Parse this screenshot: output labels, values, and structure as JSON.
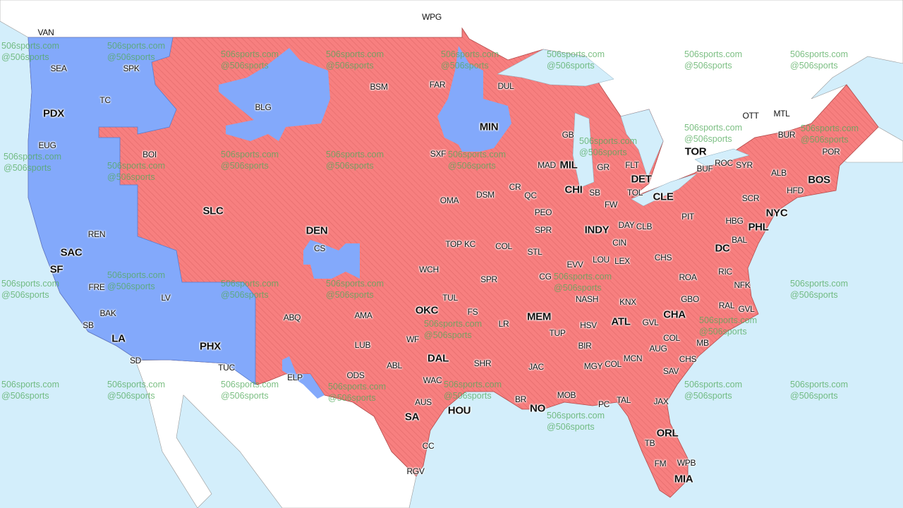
{
  "colors": {
    "water": "#d3eefb",
    "land": "#ffffff",
    "red_team": "#f77f7f",
    "blue_team": "#83a9fb",
    "border": "#b34a4a"
  },
  "watermark": {
    "line1": "506sports.com",
    "line2": "@506sports"
  },
  "labels": [
    {
      "text": "VAN",
      "major": false
    },
    {
      "text": "WPG",
      "major": false
    },
    {
      "text": "SEA",
      "major": false
    },
    {
      "text": "SPK",
      "major": false
    },
    {
      "text": "TC",
      "major": false
    },
    {
      "text": "PDX",
      "major": true
    },
    {
      "text": "EUG",
      "major": false
    },
    {
      "text": "BOI",
      "major": false
    },
    {
      "text": "BLG",
      "major": false
    },
    {
      "text": "BSM",
      "major": false
    },
    {
      "text": "FAR",
      "major": false
    },
    {
      "text": "DUL",
      "major": false
    },
    {
      "text": "MIN",
      "major": true
    },
    {
      "text": "GB",
      "major": false
    },
    {
      "text": "SXF",
      "major": false
    },
    {
      "text": "MAD",
      "major": false
    },
    {
      "text": "MIL",
      "major": true
    },
    {
      "text": "GR",
      "major": false
    },
    {
      "text": "FLT",
      "major": false
    },
    {
      "text": "DET",
      "major": true
    },
    {
      "text": "TOR",
      "major": true
    },
    {
      "text": "BUF",
      "major": false
    },
    {
      "text": "ROC",
      "major": false
    },
    {
      "text": "SYR",
      "major": false
    },
    {
      "text": "ALB",
      "major": false
    },
    {
      "text": "BUR",
      "major": false
    },
    {
      "text": "POR",
      "major": false
    },
    {
      "text": "BOS",
      "major": true
    },
    {
      "text": "HFD",
      "major": false
    },
    {
      "text": "NYC",
      "major": true
    },
    {
      "text": "SCR",
      "major": false
    },
    {
      "text": "PHL",
      "major": true
    },
    {
      "text": "HBG",
      "major": false
    },
    {
      "text": "PIT",
      "major": false
    },
    {
      "text": "BAL",
      "major": false
    },
    {
      "text": "DC",
      "major": true
    },
    {
      "text": "CLE",
      "major": true
    },
    {
      "text": "TOL",
      "major": false
    },
    {
      "text": "CHI",
      "major": true
    },
    {
      "text": "SB",
      "major": false
    },
    {
      "text": "FW",
      "major": false
    },
    {
      "text": "DAY",
      "major": false
    },
    {
      "text": "CLB",
      "major": false
    },
    {
      "text": "INDY",
      "major": true
    },
    {
      "text": "CIN",
      "major": false
    },
    {
      "text": "LEX",
      "major": false
    },
    {
      "text": "LOU",
      "major": false
    },
    {
      "text": "CHS",
      "major": false
    },
    {
      "text": "ROA",
      "major": false
    },
    {
      "text": "RIC",
      "major": false
    },
    {
      "text": "NFK",
      "major": false
    },
    {
      "text": "GBO",
      "major": false
    },
    {
      "text": "RAL",
      "major": false
    },
    {
      "text": "GVL",
      "major": false
    },
    {
      "text": "OTT",
      "major": false
    },
    {
      "text": "MTL",
      "major": false
    },
    {
      "text": "CR",
      "major": false
    },
    {
      "text": "DSM",
      "major": false
    },
    {
      "text": "OMA",
      "major": false
    },
    {
      "text": "QC",
      "major": false
    },
    {
      "text": "PEO",
      "major": false
    },
    {
      "text": "SPR",
      "major": false
    },
    {
      "text": "STL",
      "major": false
    },
    {
      "text": "EVV",
      "major": false
    },
    {
      "text": "CG",
      "major": false
    },
    {
      "text": "NASH",
      "major": false
    },
    {
      "text": "KNX",
      "major": false
    },
    {
      "text": "CHA",
      "major": true
    },
    {
      "text": "GVL",
      "major": false
    },
    {
      "text": "COL",
      "major": false
    },
    {
      "text": "AUG",
      "major": false
    },
    {
      "text": "MB",
      "major": false
    },
    {
      "text": "CHS",
      "major": false
    },
    {
      "text": "SAV",
      "major": false
    },
    {
      "text": "ATL",
      "major": true
    },
    {
      "text": "MCN",
      "major": false
    },
    {
      "text": "COL",
      "major": false
    },
    {
      "text": "MGY",
      "major": false
    },
    {
      "text": "BIR",
      "major": false
    },
    {
      "text": "HSV",
      "major": false
    },
    {
      "text": "TUP",
      "major": false
    },
    {
      "text": "MEM",
      "major": true
    },
    {
      "text": "LR",
      "major": false
    },
    {
      "text": "FS",
      "major": false
    },
    {
      "text": "SPR",
      "major": false
    },
    {
      "text": "COL",
      "major": false
    },
    {
      "text": "KC",
      "major": false
    },
    {
      "text": "TOP",
      "major": false
    },
    {
      "text": "WCH",
      "major": false
    },
    {
      "text": "TUL",
      "major": false
    },
    {
      "text": "OKC",
      "major": true
    },
    {
      "text": "AMA",
      "major": false
    },
    {
      "text": "LUB",
      "major": false
    },
    {
      "text": "WF",
      "major": false
    },
    {
      "text": "DAL",
      "major": true
    },
    {
      "text": "ABL",
      "major": false
    },
    {
      "text": "WAC",
      "major": false
    },
    {
      "text": "SHR",
      "major": false
    },
    {
      "text": "JAC",
      "major": false
    },
    {
      "text": "MOB",
      "major": false
    },
    {
      "text": "NO",
      "major": true
    },
    {
      "text": "BR",
      "major": false
    },
    {
      "text": "PC",
      "major": false
    },
    {
      "text": "TAL",
      "major": false
    },
    {
      "text": "JAX",
      "major": false
    },
    {
      "text": "ORL",
      "major": true
    },
    {
      "text": "TB",
      "major": false
    },
    {
      "text": "FM",
      "major": false
    },
    {
      "text": "WPB",
      "major": false
    },
    {
      "text": "MIA",
      "major": true
    },
    {
      "text": "HOU",
      "major": true
    },
    {
      "text": "AUS",
      "major": false
    },
    {
      "text": "SA",
      "major": true
    },
    {
      "text": "CC",
      "major": false
    },
    {
      "text": "RGV",
      "major": false
    },
    {
      "text": "ODS",
      "major": false
    },
    {
      "text": "ELP",
      "major": false
    },
    {
      "text": "ABQ",
      "major": false
    },
    {
      "text": "DEN",
      "major": true
    },
    {
      "text": "CS",
      "major": false
    },
    {
      "text": "SLC",
      "major": true
    },
    {
      "text": "REN",
      "major": false
    },
    {
      "text": "SAC",
      "major": true
    },
    {
      "text": "SF",
      "major": true
    },
    {
      "text": "FRE",
      "major": false
    },
    {
      "text": "LV",
      "major": false
    },
    {
      "text": "BAK",
      "major": false
    },
    {
      "text": "LA",
      "major": true
    },
    {
      "text": "SB",
      "major": false
    },
    {
      "text": "SD",
      "major": false
    },
    {
      "text": "PHX",
      "major": true
    },
    {
      "text": "TUC",
      "major": false
    }
  ]
}
